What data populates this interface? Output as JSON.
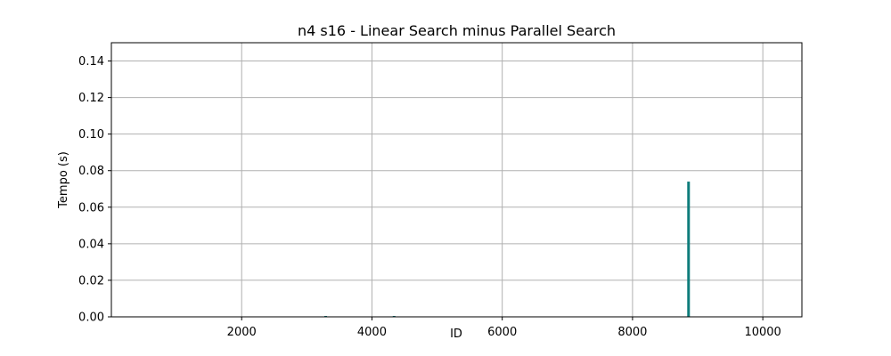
{
  "chart_data": {
    "type": "bar",
    "title": "n4 s16 - Linear Search minus Parallel Search",
    "xlabel": "ID",
    "ylabel": "Tempo (s)",
    "xlim": [
      0,
      10600
    ],
    "ylim": [
      0,
      0.15
    ],
    "xticks": [
      2000,
      4000,
      6000,
      8000,
      10000
    ],
    "xtick_labels": [
      "2000",
      "4000",
      "6000",
      "8000",
      "10000"
    ],
    "yticks": [
      0.0,
      0.02,
      0.04,
      0.06,
      0.08,
      0.1,
      0.12,
      0.14
    ],
    "ytick_labels": [
      "0.00",
      "0.02",
      "0.04",
      "0.06",
      "0.08",
      "0.10",
      "0.12",
      "0.14"
    ],
    "grid": true,
    "series": [
      {
        "color": "#0e7c7b",
        "x": [
          3290,
          4340,
          8860
        ],
        "values": [
          0.0004,
          0.0004,
          0.074
        ]
      }
    ]
  }
}
